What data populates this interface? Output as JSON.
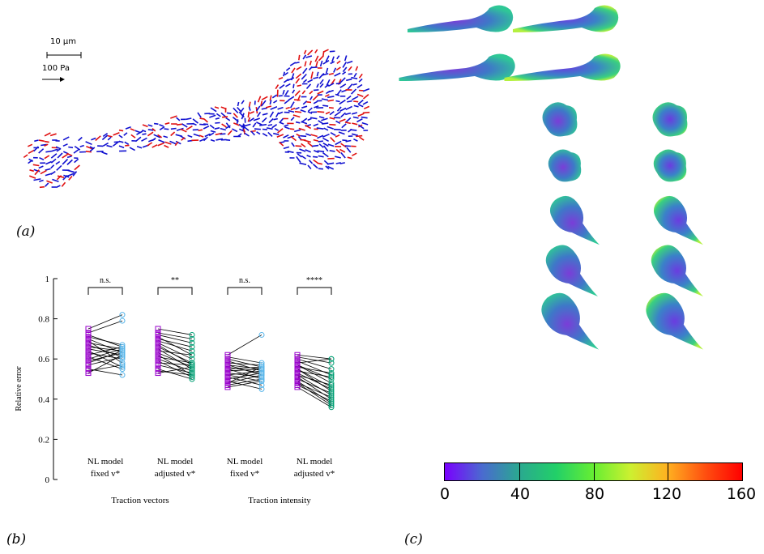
{
  "panel_a": {
    "label": "(a)",
    "scale_bar_length": "10 µm",
    "scale_arrow_label": "100 Pa"
  },
  "panel_b": {
    "label": "(b)"
  },
  "panel_c": {
    "label": "(c)",
    "colorbar": {
      "ticks": [
        "0",
        "40",
        "80",
        "120",
        "160"
      ],
      "min": 0,
      "max": 160,
      "colors": [
        "#7a00ff",
        "#4a6ad0",
        "#2aa890",
        "#22d068",
        "#66ee33",
        "#cdf030",
        "#ffb020",
        "#ff5010",
        "#ff0000"
      ]
    }
  },
  "chart_data": {
    "type": "scatter",
    "ylabel": "Relative error",
    "ylim": [
      0,
      1
    ],
    "yticks": [
      "0",
      "0.2",
      "0.4",
      "0.6",
      "0.8",
      "1"
    ],
    "groups": [
      {
        "category": "NL model fixed v*",
        "line1": "NL model",
        "line2": "fixed v*",
        "section": "Traction vectors",
        "significance": "n.s.",
        "left_color": "#9900cc",
        "right_color": "#56b4e9",
        "pairs": [
          [
            0.75,
            0.82
          ],
          [
            0.73,
            0.79
          ],
          [
            0.72,
            0.66
          ],
          [
            0.71,
            0.67
          ],
          [
            0.7,
            0.63
          ],
          [
            0.69,
            0.58
          ],
          [
            0.68,
            0.65
          ],
          [
            0.67,
            0.61
          ],
          [
            0.66,
            0.64
          ],
          [
            0.65,
            0.62
          ],
          [
            0.64,
            0.56
          ],
          [
            0.63,
            0.6
          ],
          [
            0.62,
            0.66
          ],
          [
            0.61,
            0.55
          ],
          [
            0.6,
            0.65
          ],
          [
            0.59,
            0.63
          ],
          [
            0.58,
            0.64
          ],
          [
            0.57,
            0.61
          ],
          [
            0.55,
            0.52
          ],
          [
            0.54,
            0.57
          ],
          [
            0.53,
            0.62
          ]
        ]
      },
      {
        "category": "NL model adjusted v*",
        "line1": "NL model",
        "line2": "adjusted v*",
        "section": "Traction vectors",
        "significance": "**",
        "left_color": "#9900cc",
        "right_color": "#009e73",
        "pairs": [
          [
            0.75,
            0.72
          ],
          [
            0.73,
            0.7
          ],
          [
            0.72,
            0.68
          ],
          [
            0.71,
            0.62
          ],
          [
            0.7,
            0.66
          ],
          [
            0.69,
            0.64
          ],
          [
            0.68,
            0.6
          ],
          [
            0.67,
            0.57
          ],
          [
            0.66,
            0.58
          ],
          [
            0.65,
            0.55
          ],
          [
            0.64,
            0.62
          ],
          [
            0.63,
            0.56
          ],
          [
            0.62,
            0.52
          ],
          [
            0.61,
            0.58
          ],
          [
            0.6,
            0.54
          ],
          [
            0.59,
            0.51
          ],
          [
            0.58,
            0.57
          ],
          [
            0.57,
            0.53
          ],
          [
            0.55,
            0.5
          ],
          [
            0.54,
            0.52
          ],
          [
            0.53,
            0.56
          ]
        ]
      },
      {
        "category": "NL model fixed v*",
        "line1": "NL model",
        "line2": "fixed v*",
        "section": "Traction intensity",
        "significance": "n.s.",
        "left_color": "#9900cc",
        "right_color": "#56b4e9",
        "pairs": [
          [
            0.62,
            0.72
          ],
          [
            0.61,
            0.58
          ],
          [
            0.6,
            0.56
          ],
          [
            0.59,
            0.54
          ],
          [
            0.58,
            0.57
          ],
          [
            0.57,
            0.55
          ],
          [
            0.57,
            0.52
          ],
          [
            0.56,
            0.53
          ],
          [
            0.55,
            0.5
          ],
          [
            0.55,
            0.56
          ],
          [
            0.54,
            0.55
          ],
          [
            0.53,
            0.51
          ],
          [
            0.52,
            0.49
          ],
          [
            0.52,
            0.54
          ],
          [
            0.51,
            0.47
          ],
          [
            0.5,
            0.53
          ],
          [
            0.49,
            0.45
          ],
          [
            0.48,
            0.52
          ],
          [
            0.48,
            0.56
          ],
          [
            0.47,
            0.5
          ],
          [
            0.46,
            0.49
          ]
        ]
      },
      {
        "category": "NL model adjusted v*",
        "line1": "NL model",
        "line2": "adjusted v*",
        "section": "Traction intensity",
        "significance": "****",
        "left_color": "#9900cc",
        "right_color": "#009e73",
        "pairs": [
          [
            0.62,
            0.6
          ],
          [
            0.61,
            0.58
          ],
          [
            0.6,
            0.55
          ],
          [
            0.59,
            0.52
          ],
          [
            0.58,
            0.6
          ],
          [
            0.57,
            0.5
          ],
          [
            0.57,
            0.48
          ],
          [
            0.56,
            0.53
          ],
          [
            0.55,
            0.46
          ],
          [
            0.55,
            0.44
          ],
          [
            0.54,
            0.51
          ],
          [
            0.53,
            0.45
          ],
          [
            0.52,
            0.42
          ],
          [
            0.52,
            0.47
          ],
          [
            0.51,
            0.4
          ],
          [
            0.5,
            0.43
          ],
          [
            0.49,
            0.38
          ],
          [
            0.48,
            0.41
          ],
          [
            0.48,
            0.37
          ],
          [
            0.47,
            0.39
          ],
          [
            0.46,
            0.36
          ]
        ]
      }
    ],
    "sections": [
      "Traction vectors",
      "Traction intensity"
    ]
  }
}
